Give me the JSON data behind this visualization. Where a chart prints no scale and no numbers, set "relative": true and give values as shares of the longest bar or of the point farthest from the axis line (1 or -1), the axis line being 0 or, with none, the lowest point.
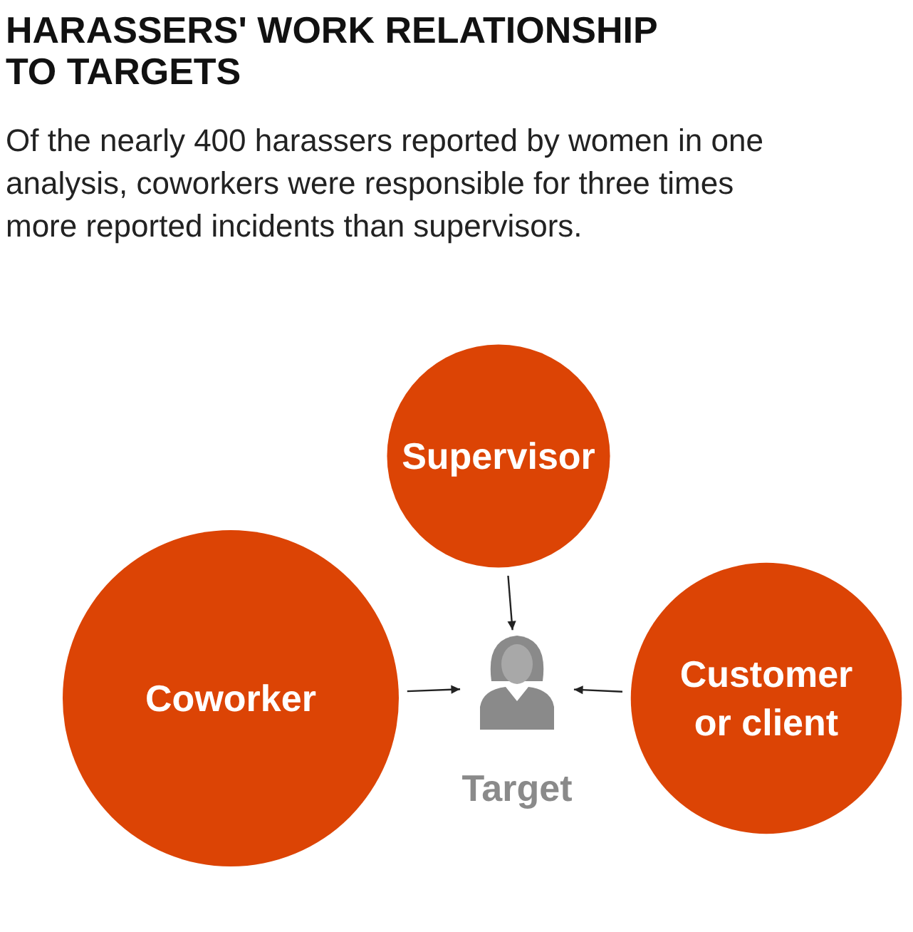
{
  "chart_data": {
    "type": "bubble",
    "relative": true,
    "title": "HARASSERS' WORK RELATIONSHIP TO TARGETS",
    "subtitle": "Of the nearly 400 harassers reported by women in one analysis, coworkers were responsible for three times more reported incidents than supervisors.",
    "categories": [
      "Coworker",
      "Supervisor",
      "Customer or client"
    ],
    "values": [
      0,
      1,
      0
    ],
    "sizes": [
      1,
      0.44,
      0.65
    ],
    "color": "#dc4405",
    "annotations": [
      "Target"
    ]
  }
}
